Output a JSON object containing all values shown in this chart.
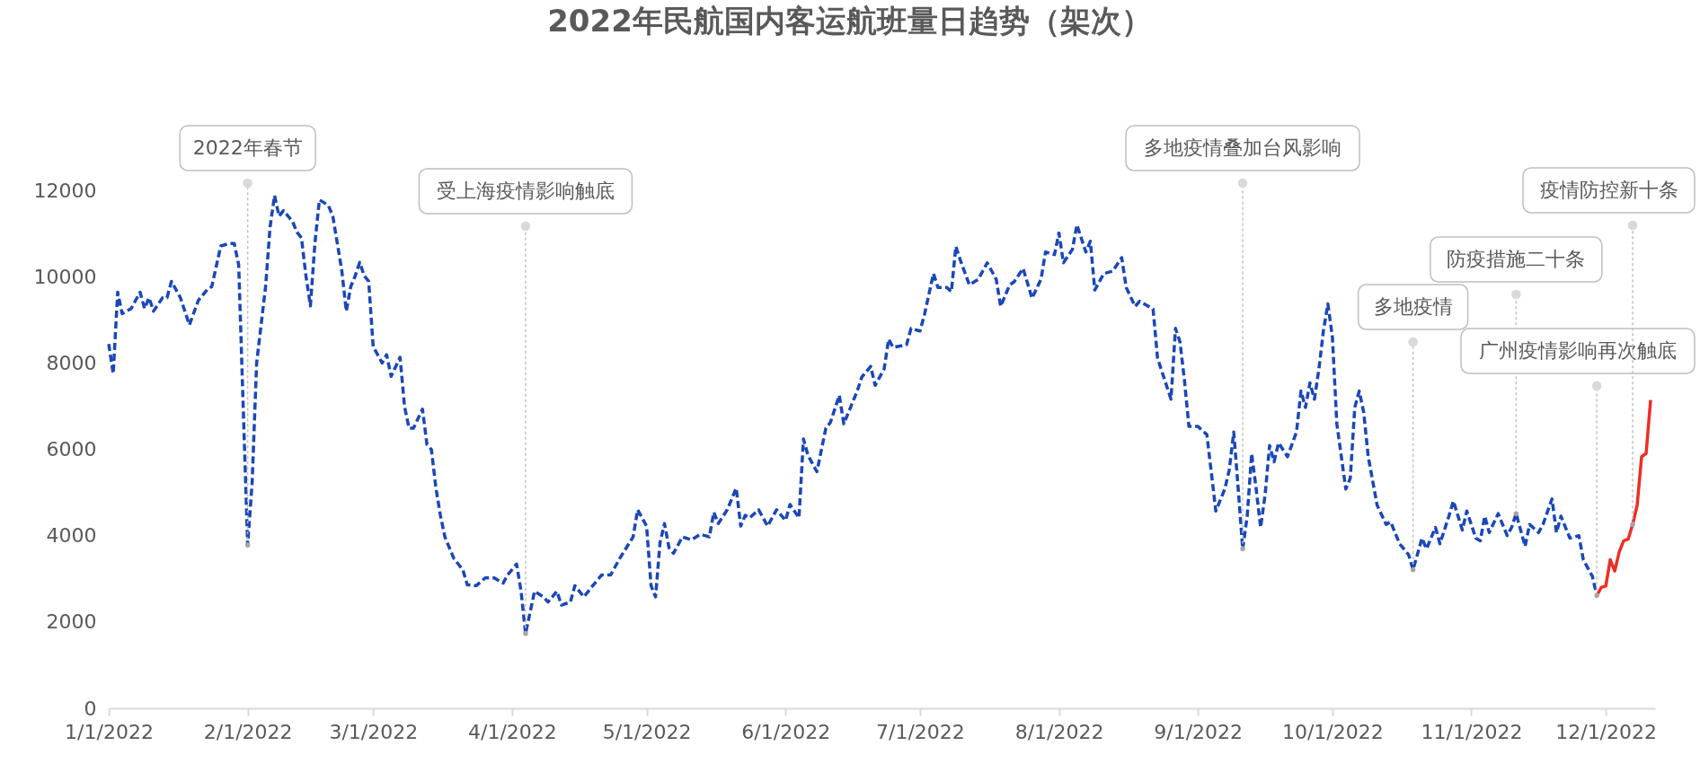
{
  "chart_data": {
    "type": "line",
    "title": "2022年民航国内客运航班量日趋势（架次）",
    "xlim": [
      "2022-01-01",
      "2022-12-12"
    ],
    "xticks": [
      {
        "value": "2022-01-01",
        "label": "1/1/2022"
      },
      {
        "value": "2022-02-01",
        "label": "2/1/2022"
      },
      {
        "value": "2022-03-01",
        "label": "3/1/2022"
      },
      {
        "value": "2022-04-01",
        "label": "4/1/2022"
      },
      {
        "value": "2022-05-01",
        "label": "5/1/2022"
      },
      {
        "value": "2022-06-01",
        "label": "6/1/2022"
      },
      {
        "value": "2022-07-01",
        "label": "7/1/2022"
      },
      {
        "value": "2022-08-01",
        "label": "8/1/2022"
      },
      {
        "value": "2022-09-01",
        "label": "9/1/2022"
      },
      {
        "value": "2022-10-01",
        "label": "10/1/2022"
      },
      {
        "value": "2022-11-01",
        "label": "11/1/2022"
      },
      {
        "value": "2022-12-01",
        "label": "12/1/2022"
      }
    ],
    "ylim": [
      0,
      12000
    ],
    "yticks": [
      0,
      2000,
      4000,
      6000,
      8000,
      10000,
      12000
    ],
    "marker": "none",
    "grid": false,
    "series": [
      {
        "color": "#1a47b8",
        "line_style": "dashed",
        "x": [
          "2022-01-01",
          "2022-01-02",
          "2022-01-03",
          "2022-01-04",
          "2022-01-06",
          "2022-01-08",
          "2022-01-09",
          "2022-01-10",
          "2022-01-11",
          "2022-01-13",
          "2022-01-14",
          "2022-01-15",
          "2022-01-17",
          "2022-01-19",
          "2022-01-21",
          "2022-01-23",
          "2022-01-24",
          "2022-01-26",
          "2022-01-28",
          "2022-01-29",
          "2022-01-30",
          "2022-01-31",
          "2022-02-01",
          "2022-02-02",
          "2022-02-03",
          "2022-02-05",
          "2022-02-06",
          "2022-02-07",
          "2022-02-08",
          "2022-02-09",
          "2022-02-11",
          "2022-02-12",
          "2022-02-13",
          "2022-02-14",
          "2022-02-15",
          "2022-02-16",
          "2022-02-17",
          "2022-02-19",
          "2022-02-20",
          "2022-02-22",
          "2022-02-23",
          "2022-02-24",
          "2022-02-25",
          "2022-02-26",
          "2022-02-27",
          "2022-02-28",
          "2022-03-01",
          "2022-03-03",
          "2022-03-04",
          "2022-03-05",
          "2022-03-07",
          "2022-03-08",
          "2022-03-09",
          "2022-03-10",
          "2022-03-12",
          "2022-03-13",
          "2022-03-14",
          "2022-03-15",
          "2022-03-16",
          "2022-03-17",
          "2022-03-19",
          "2022-03-21",
          "2022-03-22",
          "2022-03-24",
          "2022-03-26",
          "2022-03-28",
          "2022-03-30",
          "2022-03-31",
          "2022-04-02",
          "2022-04-03",
          "2022-04-04",
          "2022-04-06",
          "2022-04-08",
          "2022-04-09",
          "2022-04-11",
          "2022-04-12",
          "2022-04-14",
          "2022-04-15",
          "2022-04-17",
          "2022-04-19",
          "2022-04-21",
          "2022-04-23",
          "2022-04-25",
          "2022-04-28",
          "2022-04-29",
          "2022-05-01",
          "2022-05-02",
          "2022-05-03",
          "2022-05-04",
          "2022-05-05",
          "2022-05-06",
          "2022-05-07",
          "2022-05-09",
          "2022-05-11",
          "2022-05-13",
          "2022-05-15",
          "2022-05-16",
          "2022-05-17",
          "2022-05-19",
          "2022-05-21",
          "2022-05-22",
          "2022-05-23",
          "2022-05-24",
          "2022-05-26",
          "2022-05-28",
          "2022-05-30",
          "2022-06-01",
          "2022-06-02",
          "2022-06-04",
          "2022-06-05",
          "2022-06-06",
          "2022-06-08",
          "2022-06-10",
          "2022-06-11",
          "2022-06-13",
          "2022-06-14",
          "2022-06-17",
          "2022-06-18",
          "2022-06-20",
          "2022-06-21",
          "2022-06-23",
          "2022-06-24",
          "2022-06-25",
          "2022-06-28",
          "2022-06-29",
          "2022-07-01",
          "2022-07-02",
          "2022-07-04",
          "2022-07-05",
          "2022-07-07",
          "2022-07-08",
          "2022-07-09",
          "2022-07-10",
          "2022-07-12",
          "2022-07-14",
          "2022-07-16",
          "2022-07-18",
          "2022-07-19",
          "2022-07-21",
          "2022-07-22",
          "2022-07-24",
          "2022-07-26",
          "2022-07-28",
          "2022-07-29",
          "2022-07-31",
          "2022-08-01",
          "2022-08-02",
          "2022-08-04",
          "2022-08-05",
          "2022-08-07",
          "2022-08-08",
          "2022-08-09",
          "2022-08-11",
          "2022-08-13",
          "2022-08-15",
          "2022-08-16",
          "2022-08-18",
          "2022-08-19",
          "2022-08-22",
          "2022-08-23",
          "2022-08-26",
          "2022-08-27",
          "2022-08-28",
          "2022-08-29",
          "2022-08-30",
          "2022-09-01",
          "2022-09-03",
          "2022-09-04",
          "2022-09-05",
          "2022-09-07",
          "2022-09-08",
          "2022-09-09",
          "2022-09-10",
          "2022-09-11",
          "2022-09-12",
          "2022-09-13",
          "2022-09-14",
          "2022-09-15",
          "2022-09-16",
          "2022-09-17",
          "2022-09-18",
          "2022-09-19",
          "2022-09-21",
          "2022-09-23",
          "2022-09-24",
          "2022-09-25",
          "2022-09-26",
          "2022-09-27",
          "2022-09-28",
          "2022-09-29",
          "2022-09-30",
          "2022-10-01",
          "2022-10-02",
          "2022-10-04",
          "2022-10-05",
          "2022-10-06",
          "2022-10-07",
          "2022-10-08",
          "2022-10-09",
          "2022-10-11",
          "2022-10-13",
          "2022-10-14",
          "2022-10-16",
          "2022-10-18",
          "2022-10-19",
          "2022-10-21",
          "2022-10-22",
          "2022-10-24",
          "2022-10-25",
          "2022-10-27",
          "2022-10-28",
          "2022-10-30",
          "2022-10-31",
          "2022-11-02",
          "2022-11-03",
          "2022-11-04",
          "2022-11-05",
          "2022-11-07",
          "2022-11-09",
          "2022-11-10",
          "2022-11-11",
          "2022-11-13",
          "2022-11-14",
          "2022-11-16",
          "2022-11-17",
          "2022-11-19",
          "2022-11-20",
          "2022-11-21",
          "2022-11-23",
          "2022-11-25",
          "2022-11-26",
          "2022-11-28",
          "2022-11-29"
        ],
        "values": [
          8440,
          7750,
          9640,
          9140,
          9260,
          9640,
          9260,
          9510,
          9200,
          9510,
          9510,
          9890,
          9510,
          8880,
          9450,
          9700,
          9770,
          10710,
          10770,
          10770,
          10270,
          6990,
          3780,
          5230,
          8000,
          9770,
          11150,
          11880,
          11400,
          11530,
          11280,
          11030,
          10900,
          10020,
          9320,
          10770,
          11780,
          11650,
          11400,
          10140,
          9200,
          9770,
          10020,
          10330,
          10020,
          9890,
          8380,
          8000,
          8190,
          7690,
          8130,
          6990,
          6490,
          6490,
          6930,
          6110,
          5990,
          5100,
          4470,
          3970,
          3470,
          3210,
          2860,
          2840,
          3020,
          3020,
          2900,
          3090,
          3340,
          2710,
          1730,
          2710,
          2580,
          2460,
          2710,
          2390,
          2460,
          2840,
          2580,
          2840,
          3090,
          3090,
          3470,
          3970,
          4600,
          4220,
          2840,
          2580,
          3840,
          4280,
          3720,
          3590,
          3970,
          3900,
          4030,
          3970,
          4540,
          4280,
          4600,
          5100,
          4220,
          4470,
          4410,
          4600,
          4220,
          4600,
          4350,
          4720,
          4410,
          6240,
          5860,
          5480,
          6490,
          6620,
          7250,
          6590,
          7350,
          7670,
          7920,
          7480,
          7860,
          8550,
          8360,
          8420,
          8800,
          8740,
          9120,
          10070,
          9750,
          9750,
          9650,
          10700,
          10380,
          9810,
          9940,
          10320,
          9940,
          9310,
          9810,
          9880,
          10190,
          9500,
          9940,
          10570,
          10510,
          11010,
          10320,
          10630,
          11200,
          10570,
          10820,
          9690,
          10070,
          10130,
          10440,
          9750,
          9310,
          9430,
          9250,
          8110,
          7160,
          8800,
          8490,
          7600,
          6530,
          6530,
          6340,
          5460,
          4570,
          5080,
          5520,
          6400,
          5080,
          3690,
          4450,
          5900,
          5080,
          4190,
          4950,
          6090,
          5710,
          6150,
          5830,
          6400,
          7350,
          6970,
          7540,
          7160,
          7860,
          8740,
          9370,
          8610,
          6590,
          5080,
          5330,
          6970,
          7350,
          6850,
          5830,
          4700,
          4260,
          4320,
          3810,
          3560,
          3210,
          3940,
          3690,
          4190,
          3810,
          4450,
          4800,
          4130,
          4570,
          3940,
          3880,
          4450,
          4070,
          4510,
          4000,
          4190,
          4510,
          3750,
          4260,
          4070,
          4260,
          4850,
          4070,
          4450,
          3940,
          4000,
          3440,
          3060,
          2610
        ]
      },
      {
        "color": "#ee2e24",
        "line_style": "solid",
        "x": [
          "2022-11-29",
          "2022-11-30",
          "2022-12-01",
          "2022-12-02",
          "2022-12-03",
          "2022-12-04",
          "2022-12-05",
          "2022-12-06",
          "2022-12-07",
          "2022-12-08",
          "2022-12-09",
          "2022-12-10",
          "2022-12-11"
        ],
        "values": [
          2610,
          2800,
          2830,
          3440,
          3180,
          3620,
          3880,
          3920,
          4260,
          4700,
          5830,
          5900,
          7140
        ]
      }
    ],
    "annotations": [
      {
        "text": "2022年春节",
        "x": "2022-02-01",
        "y": 3780
      },
      {
        "text": "受上海疫情影响触底",
        "x": "2022-04-04",
        "y": 1730
      },
      {
        "text": "多地疫情叠加台风影响",
        "x": "2022-09-11",
        "y": 3690
      },
      {
        "text": "多地疫情",
        "x": "2022-10-19",
        "y": 3210
      },
      {
        "text": "防疫措施二十条",
        "x": "2022-11-11",
        "y": 4510
      },
      {
        "text": "广州疫情影响再次触底",
        "x": "2022-11-29",
        "y": 2610
      },
      {
        "text": "疫情防控新十条",
        "x": "2022-12-07",
        "y": 4260
      }
    ]
  }
}
